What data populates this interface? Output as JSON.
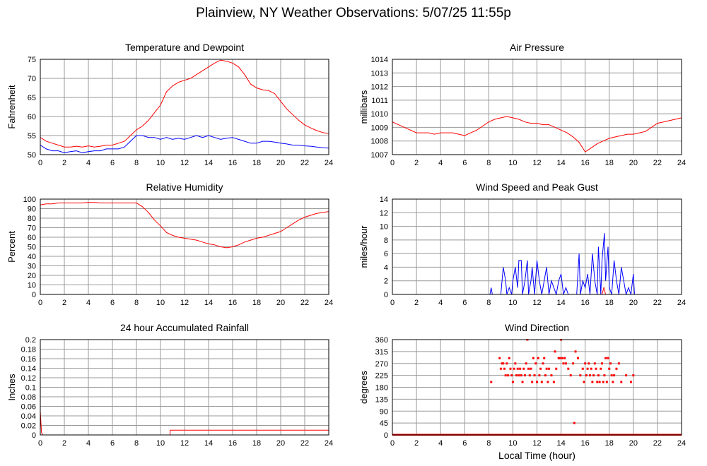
{
  "title": "Plainview, NY Weather Observations: 5/07/25 11:55p",
  "colors": {
    "red": "#ff0000",
    "blue": "#0000ff",
    "grid": "#999999"
  },
  "chart_data": [
    {
      "id": "temp",
      "type": "line",
      "title": "Temperature and Dewpoint",
      "ylabel": "Fahrenheit",
      "xlabel": "",
      "xlim": [
        0,
        24
      ],
      "ylim": [
        50,
        75
      ],
      "yticks": [
        50,
        55,
        60,
        65,
        70,
        75
      ],
      "xticks": [
        0,
        2,
        4,
        6,
        8,
        10,
        12,
        14,
        16,
        18,
        20,
        22,
        24
      ],
      "series": [
        {
          "color": "#ff0000",
          "x": [
            0,
            0.5,
            1,
            1.5,
            2,
            2.5,
            3,
            3.5,
            4,
            4.5,
            5,
            5.5,
            6,
            6.5,
            7,
            7.5,
            8,
            8.5,
            9,
            9.5,
            10,
            10.5,
            11,
            11.5,
            12,
            12.5,
            13,
            13.5,
            14,
            14.5,
            15,
            15.5,
            16,
            16.5,
            17,
            17.5,
            18,
            18.5,
            19,
            19.5,
            20,
            20.5,
            21,
            21.5,
            22,
            22.5,
            23,
            23.5,
            24
          ],
          "y": [
            54.5,
            53.5,
            53,
            52.5,
            52,
            52,
            52.2,
            52,
            52.3,
            52,
            52.2,
            52.5,
            52.5,
            53,
            53.5,
            55,
            56.5,
            57.5,
            59,
            61,
            63,
            66.5,
            68,
            69,
            69.5,
            70,
            71,
            72,
            73,
            74,
            74.8,
            74.5,
            74,
            73,
            71,
            68.5,
            67.5,
            67,
            66.8,
            66,
            64,
            62,
            60.5,
            59,
            57.8,
            57,
            56.3,
            55.8,
            55.5
          ]
        },
        {
          "color": "#0000ff",
          "x": [
            0,
            0.5,
            1,
            1.5,
            2,
            2.5,
            3,
            3.5,
            4,
            4.5,
            5,
            5.5,
            6,
            6.5,
            7,
            7.5,
            8,
            8.5,
            9,
            9.5,
            10,
            10.5,
            11,
            11.5,
            12,
            12.5,
            13,
            13.5,
            14,
            14.5,
            15,
            15.5,
            16,
            16.5,
            17,
            17.5,
            18,
            18.5,
            19,
            19.5,
            20,
            20.5,
            21,
            21.5,
            22,
            22.5,
            23,
            23.5,
            24
          ],
          "y": [
            52.5,
            51.5,
            51,
            51,
            50.5,
            50.8,
            51,
            50.5,
            50.8,
            51,
            51,
            51.5,
            51.5,
            51.5,
            52,
            53.5,
            55,
            55,
            54.5,
            54.5,
            54,
            54.5,
            54,
            54.3,
            54,
            54.5,
            55,
            54.5,
            55,
            54.5,
            54,
            54.3,
            54.5,
            54,
            53.5,
            53,
            53,
            53.5,
            53.5,
            53.3,
            53,
            52.8,
            52.5,
            52.5,
            52.3,
            52.2,
            52,
            51.8,
            51.7
          ]
        }
      ]
    },
    {
      "id": "pressure",
      "type": "line",
      "title": "Air Pressure",
      "ylabel": "millibars",
      "xlabel": "",
      "xlim": [
        0,
        24
      ],
      "ylim": [
        1007,
        1014
      ],
      "yticks": [
        1007,
        1008,
        1009,
        1010,
        1011,
        1012,
        1013,
        1014
      ],
      "xticks": [
        0,
        2,
        4,
        6,
        8,
        10,
        12,
        14,
        16,
        18,
        20,
        22,
        24
      ],
      "series": [
        {
          "color": "#ff0000",
          "x": [
            0,
            0.5,
            1,
            1.5,
            2,
            2.5,
            3,
            3.5,
            4,
            4.5,
            5,
            5.5,
            6,
            6.5,
            7,
            7.5,
            8,
            8.5,
            9,
            9.5,
            10,
            10.5,
            11,
            11.5,
            12,
            12.5,
            13,
            13.5,
            14,
            14.5,
            15,
            15.5,
            16,
            16.5,
            17,
            17.5,
            18,
            18.5,
            19,
            19.5,
            20,
            20.5,
            21,
            21.5,
            22,
            22.5,
            23,
            23.5,
            24
          ],
          "y": [
            1009.4,
            1009.2,
            1009,
            1008.8,
            1008.6,
            1008.6,
            1008.6,
            1008.5,
            1008.6,
            1008.6,
            1008.6,
            1008.5,
            1008.4,
            1008.6,
            1008.8,
            1009.1,
            1009.4,
            1009.6,
            1009.7,
            1009.8,
            1009.7,
            1009.6,
            1009.4,
            1009.3,
            1009.3,
            1009.2,
            1009.2,
            1009,
            1008.8,
            1008.6,
            1008.3,
            1007.9,
            1007.2,
            1007.5,
            1007.8,
            1008,
            1008.2,
            1008.3,
            1008.4,
            1008.5,
            1008.5,
            1008.6,
            1008.7,
            1009,
            1009.3,
            1009.4,
            1009.5,
            1009.6,
            1009.7
          ]
        }
      ]
    },
    {
      "id": "humidity",
      "type": "line",
      "title": "Relative Humidity",
      "ylabel": "Percent",
      "xlabel": "",
      "xlim": [
        0,
        24
      ],
      "ylim": [
        0,
        100
      ],
      "yticks": [
        0,
        10,
        20,
        30,
        40,
        50,
        60,
        70,
        80,
        90,
        100
      ],
      "xticks": [
        0,
        2,
        4,
        6,
        8,
        10,
        12,
        14,
        16,
        18,
        20,
        22,
        24
      ],
      "series": [
        {
          "color": "#ff0000",
          "x": [
            0,
            0.5,
            1,
            1.5,
            2,
            2.5,
            3,
            3.5,
            4,
            4.5,
            5,
            5.5,
            6,
            6.5,
            7,
            7.5,
            8,
            8.5,
            9,
            9.5,
            10,
            10.5,
            11,
            11.5,
            12,
            12.5,
            13,
            13.5,
            14,
            14.5,
            15,
            15.5,
            16,
            16.5,
            17,
            17.5,
            18,
            18.5,
            19,
            19.5,
            20,
            20.5,
            21,
            21.5,
            22,
            22.5,
            23,
            23.5,
            24
          ],
          "y": [
            94,
            95,
            95,
            96,
            96,
            96,
            96,
            96,
            96.5,
            96.5,
            96,
            96,
            96,
            96,
            96,
            96,
            96,
            92,
            86,
            78,
            72,
            65,
            62,
            60,
            59,
            58,
            57,
            55,
            53,
            52,
            50,
            49,
            50,
            52,
            55,
            57,
            59,
            60,
            62,
            64,
            66,
            70,
            74,
            78,
            81,
            83,
            85,
            86,
            87
          ]
        }
      ]
    },
    {
      "id": "wind",
      "type": "line",
      "title": "Wind Speed and Peak Gust",
      "ylabel": "miles/hour",
      "xlabel": "",
      "xlim": [
        0,
        24
      ],
      "ylim": [
        0,
        14
      ],
      "yticks": [
        0,
        2,
        4,
        6,
        8,
        10,
        12,
        14
      ],
      "xticks": [
        0,
        2,
        4,
        6,
        8,
        10,
        12,
        14,
        16,
        18,
        20,
        22,
        24
      ],
      "series": [
        {
          "color": "#0000ff",
          "x": [
            0,
            8.1,
            8.2,
            8.3,
            8.6,
            9.0,
            9.2,
            9.4,
            9.5,
            9.7,
            9.9,
            10.0,
            10.2,
            10.4,
            10.5,
            10.7,
            10.8,
            11.0,
            11.2,
            11.3,
            11.5,
            11.6,
            11.8,
            12.0,
            12.2,
            12.4,
            12.6,
            12.8,
            13.0,
            13.2,
            13.4,
            13.6,
            13.8,
            14.0,
            14.2,
            14.4,
            14.6,
            15.0,
            15.3,
            15.5,
            15.6,
            15.8,
            16.0,
            16.2,
            16.4,
            16.6,
            16.8,
            17.0,
            17.1,
            17.3,
            17.4,
            17.6,
            17.7,
            17.9,
            18.0,
            18.2,
            18.4,
            18.6,
            18.8,
            19.0,
            19.4,
            19.6,
            19.8,
            20.0,
            20.1,
            24
          ],
          "y": [
            0,
            0,
            1,
            0,
            0,
            0,
            4,
            2,
            0,
            1,
            0,
            2,
            4,
            1,
            5,
            5,
            0,
            2,
            5,
            0,
            2,
            4,
            0,
            5,
            2,
            0,
            2,
            4,
            0,
            2,
            1,
            0,
            2,
            3,
            0,
            1,
            0,
            0,
            0,
            6,
            0,
            2,
            1,
            3,
            0,
            6,
            2,
            0,
            7,
            0,
            5,
            9,
            2,
            7,
            1,
            0,
            5,
            2,
            0,
            4,
            0,
            1,
            0,
            3,
            0,
            0
          ]
        },
        {
          "color": "#ff0000",
          "x": [
            0,
            17.4,
            17.55,
            17.7,
            24
          ],
          "y": [
            0,
            0,
            1,
            0,
            0
          ]
        }
      ]
    },
    {
      "id": "rain",
      "type": "line",
      "title": "24 hour Accumulated Rainfall",
      "ylabel": "Inches",
      "xlabel": "",
      "xlim": [
        0,
        24
      ],
      "ylim": [
        0,
        0.2
      ],
      "yticks": [
        0,
        0.02,
        0.04,
        0.06,
        0.08,
        0.1,
        0.12,
        0.14,
        0.16,
        0.18,
        0.2
      ],
      "xticks": [
        0,
        2,
        4,
        6,
        8,
        10,
        12,
        14,
        16,
        18,
        20,
        22,
        24
      ],
      "series": [
        {
          "color": "#ff0000",
          "x": [
            0,
            0.1,
            0.2,
            10.8,
            10.8,
            24
          ],
          "y": [
            0.05,
            0.005,
            0,
            0,
            0.01,
            0.01
          ]
        }
      ]
    },
    {
      "id": "direction",
      "type": "scatter",
      "title": "Wind Direction",
      "ylabel": "degrees",
      "xlabel": "Local Time (hour)",
      "xlim": [
        0,
        24
      ],
      "ylim": [
        0,
        360
      ],
      "yticks": [
        0,
        45,
        90,
        135,
        180,
        225,
        270,
        315,
        360
      ],
      "xticks": [
        0,
        2,
        4,
        6,
        8,
        10,
        12,
        14,
        16,
        18,
        20,
        22,
        24
      ],
      "baseline": {
        "value": 0,
        "from": 0,
        "to": 24
      },
      "series": [
        {
          "color": "#ff0000",
          "x": [
            8.2,
            8.9,
            9.0,
            9.1,
            9.2,
            9.3,
            9.4,
            9.5,
            9.6,
            9.7,
            9.8,
            9.9,
            10.0,
            10.1,
            10.2,
            10.3,
            10.4,
            10.5,
            10.6,
            10.7,
            10.8,
            10.9,
            11.0,
            11.1,
            11.2,
            11.3,
            11.4,
            11.5,
            11.6,
            11.7,
            11.8,
            11.9,
            12.0,
            12.1,
            12.2,
            12.3,
            12.4,
            12.5,
            12.6,
            12.7,
            12.8,
            12.9,
            13.0,
            13.2,
            13.4,
            13.5,
            13.6,
            13.8,
            13.9,
            14.0,
            14.1,
            14.2,
            14.3,
            14.4,
            14.6,
            14.8,
            15.0,
            15.1,
            15.2,
            15.4,
            15.6,
            15.8,
            15.9,
            16.0,
            16.1,
            16.2,
            16.3,
            16.4,
            16.5,
            16.6,
            16.7,
            16.8,
            16.9,
            17.0,
            17.1,
            17.2,
            17.3,
            17.4,
            17.5,
            17.6,
            17.7,
            17.8,
            17.9,
            18.0,
            18.1,
            18.2,
            18.3,
            18.4,
            18.6,
            18.8,
            19.0,
            19.4,
            19.8,
            20.0
          ],
          "y": [
            200,
            290,
            250,
            270,
            270,
            250,
            225,
            270,
            225,
            290,
            250,
            225,
            200,
            250,
            270,
            225,
            250,
            225,
            250,
            225,
            200,
            250,
            225,
            270,
            360,
            250,
            225,
            250,
            200,
            290,
            225,
            270,
            200,
            290,
            225,
            250,
            200,
            270,
            290,
            225,
            250,
            200,
            250,
            225,
            200,
            315,
            250,
            290,
            290,
            360,
            290,
            270,
            290,
            270,
            250,
            225,
            270,
            45,
            315,
            290,
            225,
            250,
            200,
            270,
            225,
            250,
            270,
            225,
            250,
            200,
            225,
            270,
            250,
            200,
            225,
            200,
            250,
            270,
            200,
            225,
            290,
            200,
            290,
            250,
            270,
            225,
            200,
            225,
            250,
            270,
            200,
            225,
            200,
            225
          ]
        }
      ]
    }
  ]
}
